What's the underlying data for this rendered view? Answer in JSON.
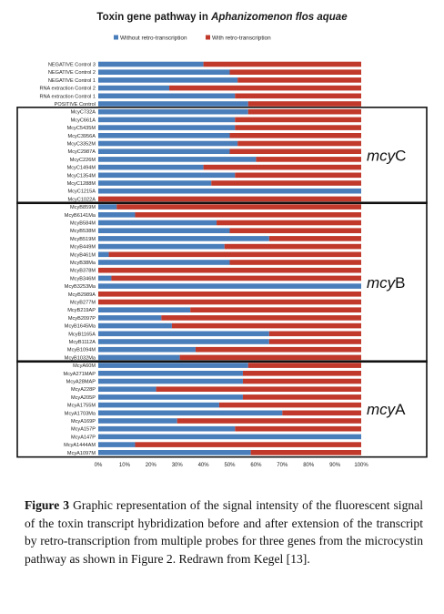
{
  "chart_data": {
    "type": "bar",
    "orientation": "horizontal",
    "stacked": "percent",
    "title_prefix": "Toxin gene pathway in ",
    "title_italic": "Aphanizomenon flos aquae",
    "series": [
      {
        "name": "Without retro-transcription",
        "color": "#4a7ebb"
      },
      {
        "name": "With retro-transcription",
        "color": "#c0392b"
      }
    ],
    "categories": [
      "NEGATIVE Control 3",
      "NEGATIVE Control 2",
      "NEGATIVE Control 1",
      "RNA extraction Control 2",
      "RNA extraction Control 1",
      "POSITIVE Control",
      "McyC732A",
      "McyC661A",
      "McyC5435M",
      "McyC3956A",
      "McyC3352M",
      "McyC2987A",
      "McyC226M",
      "McyC1494M",
      "McyC1354M",
      "McyC1288M",
      "McyC1215A",
      "McyC1022A",
      "McyB859M",
      "McyB6141Ma",
      "McyB584M",
      "McyB538M",
      "McyB519M",
      "McyB449M",
      "McyB461M",
      "McyB38Ma",
      "McyB378M",
      "McyB346M",
      "McyB3253Ma",
      "McyB2989A",
      "McyB277M",
      "McyB219AP",
      "McyB2097P",
      "McyB1645Ma",
      "McyB1165A",
      "McyB1112A",
      "McyB1094M",
      "McyB1032Ma",
      "McyA60M",
      "McyA271MAP",
      "McyA28MAP",
      "McyA228P",
      "McyA205P",
      "McyA1755M",
      "McyA1703Ma",
      "McyA169P",
      "McyA157P",
      "McyA147P",
      "McyA1444AM",
      "McyA1097M"
    ],
    "without_pct": [
      40,
      50,
      53,
      27,
      52,
      57,
      57,
      52,
      52,
      50,
      53,
      50,
      60,
      40,
      52,
      43,
      100,
      0,
      7,
      14,
      45,
      50,
      65,
      48,
      4,
      50,
      0,
      5,
      100,
      0,
      0,
      35,
      24,
      28,
      65,
      65,
      37,
      31,
      57,
      55,
      55,
      22,
      55,
      46,
      70,
      30,
      52,
      100,
      14,
      58
    ],
    "xticks": [
      "0%",
      "10%",
      "20%",
      "30%",
      "40%",
      "50%",
      "60%",
      "70%",
      "80%",
      "90%",
      "100%"
    ],
    "xlim": [
      0,
      100
    ],
    "grid": false,
    "legend_position": "top",
    "group_labels": [
      {
        "gene": "mcy",
        "letter": "C"
      },
      {
        "gene": "mcy",
        "letter": "B"
      },
      {
        "gene": "mcy",
        "letter": "A"
      }
    ]
  },
  "caption": {
    "label": "Figure 3",
    "text": " Graphic representation of the signal intensity of the fluorescent signal of the toxin transcript hybridization before and after extension of the transcript by retro-transcription from multiple probes for three genes from the microcystin pathway as shown in Figure 2. Redrawn from Kegel [13]."
  }
}
